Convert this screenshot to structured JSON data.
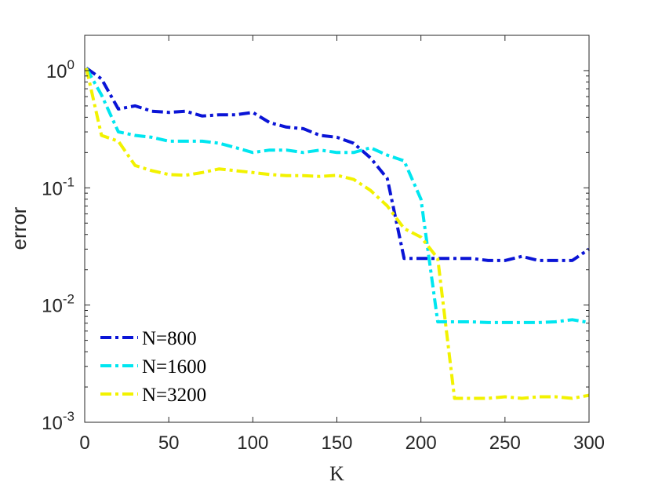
{
  "chart_data": {
    "type": "line",
    "title": "",
    "xlabel": "K",
    "ylabel": "error",
    "xlim": [
      0,
      300
    ],
    "ylim": [
      0.001,
      2
    ],
    "yscale": "log",
    "xticks": [
      0,
      50,
      100,
      150,
      200,
      250,
      300
    ],
    "xtick_labels": [
      "0",
      "50",
      "100",
      "150",
      "200",
      "250",
      "300"
    ],
    "yticks": [
      {
        "value": 1,
        "base": "10",
        "exp": "0"
      },
      {
        "value": 0.1,
        "base": "10",
        "exp": "-1"
      },
      {
        "value": 0.01,
        "base": "10",
        "exp": "-2"
      },
      {
        "value": 0.001,
        "base": "10",
        "exp": "-3"
      }
    ],
    "grid": false,
    "legend_position": "bottom-left",
    "series": [
      {
        "name": "N=800",
        "color": "#0a14d6",
        "x": [
          1,
          10,
          20,
          30,
          40,
          50,
          60,
          70,
          80,
          90,
          100,
          110,
          120,
          130,
          140,
          150,
          160,
          170,
          180,
          190,
          200,
          210,
          220,
          230,
          240,
          250,
          260,
          270,
          280,
          290,
          300
        ],
        "values": [
          1.05,
          0.85,
          0.47,
          0.5,
          0.45,
          0.44,
          0.45,
          0.41,
          0.42,
          0.42,
          0.44,
          0.36,
          0.33,
          0.32,
          0.28,
          0.27,
          0.24,
          0.18,
          0.12,
          0.025,
          0.025,
          0.025,
          0.025,
          0.025,
          0.024,
          0.024,
          0.026,
          0.024,
          0.024,
          0.024,
          0.03
        ]
      },
      {
        "name": "N=1600",
        "color": "#00e6f0",
        "x": [
          1,
          10,
          20,
          30,
          40,
          50,
          60,
          70,
          80,
          90,
          100,
          110,
          120,
          130,
          140,
          150,
          160,
          170,
          180,
          190,
          200,
          210,
          220,
          230,
          240,
          250,
          260,
          270,
          280,
          290,
          300
        ],
        "values": [
          1.05,
          0.62,
          0.3,
          0.28,
          0.27,
          0.25,
          0.25,
          0.25,
          0.24,
          0.22,
          0.2,
          0.21,
          0.21,
          0.2,
          0.21,
          0.2,
          0.2,
          0.22,
          0.19,
          0.17,
          0.08,
          0.0072,
          0.0072,
          0.0072,
          0.0071,
          0.0071,
          0.0071,
          0.0071,
          0.0072,
          0.0075,
          0.0071
        ]
      },
      {
        "name": "N=3200",
        "color": "#f2f200",
        "x": [
          1,
          10,
          20,
          30,
          40,
          50,
          60,
          70,
          80,
          90,
          100,
          110,
          120,
          130,
          140,
          150,
          160,
          170,
          180,
          190,
          200,
          210,
          220,
          230,
          240,
          250,
          260,
          270,
          280,
          290,
          300
        ],
        "values": [
          1.05,
          0.28,
          0.25,
          0.155,
          0.14,
          0.13,
          0.128,
          0.135,
          0.145,
          0.14,
          0.135,
          0.13,
          0.127,
          0.127,
          0.125,
          0.128,
          0.118,
          0.095,
          0.07,
          0.045,
          0.038,
          0.025,
          0.0016,
          0.0016,
          0.0016,
          0.00165,
          0.0016,
          0.00165,
          0.00165,
          0.0016,
          0.0017
        ]
      }
    ]
  }
}
